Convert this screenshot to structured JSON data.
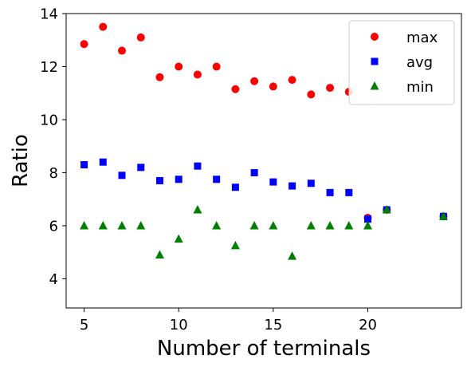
{
  "chart_data": {
    "type": "scatter",
    "title": "",
    "xlabel": "Number of terminals",
    "ylabel": "Ratio",
    "xlim": [
      4.05,
      24.95
    ],
    "ylim": [
      2.9,
      14
    ],
    "xticks": [
      5,
      10,
      15,
      20
    ],
    "yticks": [
      4,
      6,
      8,
      10,
      12,
      14
    ],
    "grid": false,
    "legend_position": "top-right",
    "series": [
      {
        "name": "max",
        "marker": "circle",
        "color": "#ff0000",
        "points": [
          [
            5,
            12.85
          ],
          [
            6,
            13.5
          ],
          [
            7,
            12.6
          ],
          [
            8,
            13.1
          ],
          [
            9,
            11.6
          ],
          [
            10,
            12.0
          ],
          [
            11,
            11.7
          ],
          [
            12,
            12.0
          ],
          [
            13,
            11.15
          ],
          [
            14,
            11.45
          ],
          [
            15,
            11.25
          ],
          [
            16,
            11.5
          ],
          [
            17,
            10.95
          ],
          [
            18,
            11.2
          ],
          [
            19,
            11.05
          ],
          [
            20,
            6.3
          ],
          [
            21,
            6.6
          ],
          [
            24,
            6.35
          ]
        ]
      },
      {
        "name": "avg",
        "marker": "square",
        "color": "#0000ff",
        "points": [
          [
            5,
            8.3
          ],
          [
            6,
            8.4
          ],
          [
            7,
            7.9
          ],
          [
            8,
            8.2
          ],
          [
            9,
            7.7
          ],
          [
            10,
            7.75
          ],
          [
            11,
            8.25
          ],
          [
            12,
            7.75
          ],
          [
            13,
            7.45
          ],
          [
            14,
            8.0
          ],
          [
            15,
            7.65
          ],
          [
            16,
            7.5
          ],
          [
            17,
            7.6
          ],
          [
            18,
            7.25
          ],
          [
            19,
            7.25
          ],
          [
            20,
            6.25
          ],
          [
            21,
            6.6
          ],
          [
            24,
            6.35
          ]
        ]
      },
      {
        "name": "min",
        "marker": "triangle",
        "color": "#008000",
        "points": [
          [
            5,
            6.0
          ],
          [
            6,
            6.0
          ],
          [
            7,
            6.0
          ],
          [
            8,
            6.0
          ],
          [
            9,
            4.9
          ],
          [
            10,
            5.5
          ],
          [
            11,
            6.6
          ],
          [
            12,
            6.0
          ],
          [
            13,
            5.25
          ],
          [
            14,
            6.0
          ],
          [
            15,
            6.0
          ],
          [
            16,
            4.85
          ],
          [
            17,
            6.0
          ],
          [
            18,
            6.0
          ],
          [
            19,
            6.0
          ],
          [
            20,
            6.0
          ],
          [
            21,
            6.6
          ],
          [
            24,
            6.35
          ]
        ]
      }
    ]
  }
}
